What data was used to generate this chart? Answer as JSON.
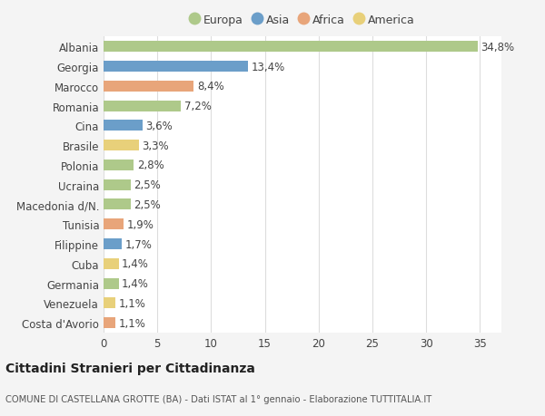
{
  "categories": [
    "Albania",
    "Georgia",
    "Marocco",
    "Romania",
    "Cina",
    "Brasile",
    "Polonia",
    "Ucraina",
    "Macedonia d/N.",
    "Tunisia",
    "Filippine",
    "Cuba",
    "Germania",
    "Venezuela",
    "Costa d'Avorio"
  ],
  "values": [
    34.8,
    13.4,
    8.4,
    7.2,
    3.6,
    3.3,
    2.8,
    2.5,
    2.5,
    1.9,
    1.7,
    1.4,
    1.4,
    1.1,
    1.1
  ],
  "labels": [
    "34,8%",
    "13,4%",
    "8,4%",
    "7,2%",
    "3,6%",
    "3,3%",
    "2,8%",
    "2,5%",
    "2,5%",
    "1,9%",
    "1,7%",
    "1,4%",
    "1,4%",
    "1,1%",
    "1,1%"
  ],
  "continents": [
    "Europa",
    "Asia",
    "Africa",
    "Europa",
    "Asia",
    "America",
    "Europa",
    "Europa",
    "Europa",
    "Africa",
    "Asia",
    "America",
    "Europa",
    "America",
    "Africa"
  ],
  "colors": {
    "Europa": "#aec98a",
    "Asia": "#6b9ec9",
    "Africa": "#e8a57a",
    "America": "#e8d07a"
  },
  "legend_order": [
    "Europa",
    "Asia",
    "Africa",
    "America"
  ],
  "xlim": [
    0,
    37
  ],
  "xticks": [
    0,
    5,
    10,
    15,
    20,
    25,
    30,
    35
  ],
  "title": "Cittadini Stranieri per Cittadinanza",
  "subtitle": "COMUNE DI CASTELLANA GROTTE (BA) - Dati ISTAT al 1° gennaio - Elaborazione TUTTITALIA.IT",
  "background_color": "#f4f4f4",
  "plot_bg_color": "#ffffff",
  "grid_color": "#dddddd",
  "label_fontsize": 8.5,
  "tick_fontsize": 8.5,
  "bar_height": 0.55
}
